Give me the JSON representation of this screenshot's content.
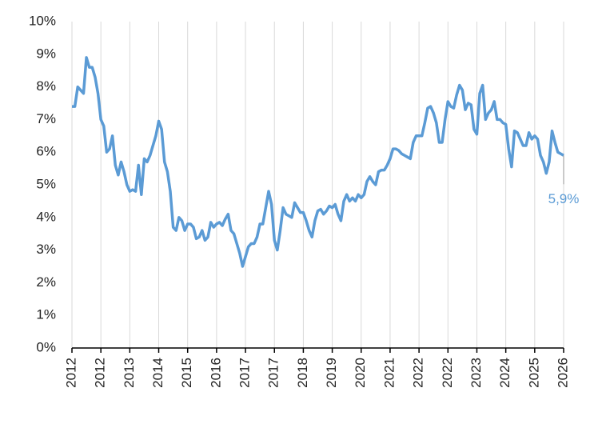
{
  "chart_data": {
    "type": "line",
    "categories": [
      "2012",
      null,
      null,
      null,
      null,
      null,
      null,
      null,
      null,
      null,
      "2012",
      null,
      null,
      null,
      null,
      null,
      null,
      null,
      null,
      null,
      "2013",
      null,
      null,
      null,
      null,
      null,
      null,
      null,
      null,
      null,
      "2014",
      null,
      null,
      null,
      null,
      null,
      null,
      null,
      null,
      null,
      "2015",
      null,
      null,
      null,
      null,
      null,
      null,
      null,
      null,
      null,
      "2016",
      null,
      null,
      null,
      null,
      null,
      null,
      null,
      null,
      null,
      "2017",
      null,
      null,
      null,
      null,
      null,
      null,
      null,
      null,
      null,
      "2017",
      null,
      null,
      null,
      null,
      null,
      null,
      null,
      null,
      null,
      "2018",
      null,
      null,
      null,
      null,
      null,
      null,
      null,
      null,
      null,
      "2019",
      null,
      null,
      null,
      null,
      null,
      null,
      null,
      null,
      null,
      "2020",
      null,
      null,
      null,
      null,
      null,
      null,
      null,
      null,
      null,
      "2021",
      null,
      null,
      null,
      null,
      null,
      null,
      null,
      null,
      null,
      "2022",
      null,
      null,
      null,
      null,
      null,
      null,
      null,
      null,
      null,
      "2022",
      null,
      null,
      null,
      null,
      null,
      null,
      null,
      null,
      null,
      "2023",
      null,
      null,
      null,
      null,
      null,
      null,
      null,
      null,
      null,
      "2024",
      null,
      null,
      null,
      null,
      null,
      null,
      null,
      null,
      null,
      "2025",
      null,
      null,
      null,
      null,
      null,
      null,
      null,
      null,
      null,
      "2026"
    ],
    "values": [
      7.4,
      7.4,
      8.0,
      7.9,
      7.8,
      8.9,
      8.6,
      8.6,
      8.3,
      7.8,
      7.0,
      6.8,
      6.0,
      6.1,
      6.5,
      5.6,
      5.3,
      5.7,
      5.4,
      5.0,
      4.8,
      4.85,
      4.8,
      5.6,
      4.7,
      5.8,
      5.7,
      5.9,
      6.2,
      6.5,
      6.95,
      6.7,
      5.7,
      5.4,
      4.8,
      3.7,
      3.6,
      4.0,
      3.9,
      3.6,
      3.8,
      3.8,
      3.7,
      3.35,
      3.4,
      3.6,
      3.3,
      3.4,
      3.85,
      3.7,
      3.8,
      3.85,
      3.75,
      3.95,
      4.1,
      3.6,
      3.5,
      3.2,
      2.9,
      2.5,
      2.8,
      3.1,
      3.2,
      3.2,
      3.4,
      3.8,
      3.8,
      4.3,
      4.8,
      4.4,
      3.3,
      3.0,
      3.6,
      4.3,
      4.1,
      4.05,
      4.0,
      4.45,
      4.3,
      4.15,
      4.15,
      3.9,
      3.6,
      3.4,
      3.9,
      4.2,
      4.25,
      4.1,
      4.2,
      4.35,
      4.3,
      4.4,
      4.1,
      3.9,
      4.5,
      4.7,
      4.5,
      4.6,
      4.5,
      4.7,
      4.6,
      4.7,
      5.1,
      5.25,
      5.1,
      5.0,
      5.4,
      5.45,
      5.45,
      5.6,
      5.8,
      6.1,
      6.1,
      6.05,
      5.95,
      5.9,
      5.85,
      5.8,
      6.3,
      6.5,
      6.5,
      6.5,
      6.9,
      7.35,
      7.4,
      7.2,
      6.9,
      6.3,
      6.3,
      7.0,
      7.55,
      7.4,
      7.35,
      7.75,
      8.05,
      7.9,
      7.3,
      7.5,
      7.45,
      6.7,
      6.55,
      7.8,
      8.05,
      7.0,
      7.2,
      7.3,
      7.55,
      7.0,
      7.0,
      6.9,
      6.85,
      6.1,
      5.55,
      6.65,
      6.6,
      6.4,
      6.2,
      6.2,
      6.6,
      6.4,
      6.5,
      6.4,
      5.9,
      5.7,
      5.35,
      5.7,
      6.65,
      6.3,
      6.0,
      5.95,
      5.9
    ],
    "value_labels": [
      null,
      null,
      null,
      null,
      null,
      null,
      null,
      null,
      null,
      null,
      null,
      null,
      null,
      null,
      null,
      null,
      null,
      null,
      null,
      null,
      null,
      null,
      null,
      null,
      null,
      null,
      null,
      null,
      null,
      null,
      null,
      null,
      null,
      null,
      null,
      null,
      null,
      null,
      null,
      null,
      null,
      null,
      null,
      null,
      null,
      null,
      null,
      null,
      null,
      null,
      null,
      null,
      null,
      null,
      null,
      null,
      null,
      null,
      null,
      null,
      null,
      null,
      null,
      null,
      null,
      null,
      null,
      null,
      null,
      null,
      null,
      null,
      null,
      null,
      null,
      null,
      null,
      null,
      null,
      null,
      null,
      null,
      null,
      null,
      null,
      null,
      null,
      null,
      null,
      null,
      null,
      null,
      null,
      null,
      null,
      null,
      null,
      null,
      null,
      null,
      null,
      null,
      null,
      null,
      null,
      null,
      null,
      null,
      null,
      null,
      null,
      null,
      null,
      null,
      null,
      null,
      null,
      null,
      null,
      null,
      null,
      null,
      null,
      null,
      null,
      null,
      null,
      null,
      null,
      null,
      null,
      null,
      null,
      null,
      null,
      null,
      null,
      null,
      null,
      null,
      null,
      null,
      null,
      null,
      null,
      null,
      null,
      null,
      null,
      null,
      null,
      null,
      null,
      null,
      null,
      null,
      null,
      null,
      null,
      null,
      null,
      null,
      null,
      null,
      null,
      null,
      null,
      null,
      null,
      null,
      "5,9%"
    ],
    "color": "#5b9bd5",
    "ylim": [
      0,
      10
    ],
    "yticks": [
      {
        "value": 0,
        "label": "0%"
      },
      {
        "value": 1,
        "label": "1%"
      },
      {
        "value": 2,
        "label": "2%"
      },
      {
        "value": 3,
        "label": "3%"
      },
      {
        "value": 4,
        "label": "4%"
      },
      {
        "value": 5,
        "label": "5%"
      },
      {
        "value": 6,
        "label": "6%"
      },
      {
        "value": 7,
        "label": "7%"
      },
      {
        "value": 8,
        "label": "8%"
      },
      {
        "value": 9,
        "label": "9%"
      },
      {
        "value": 10,
        "label": "10%"
      }
    ],
    "grid": "x"
  }
}
